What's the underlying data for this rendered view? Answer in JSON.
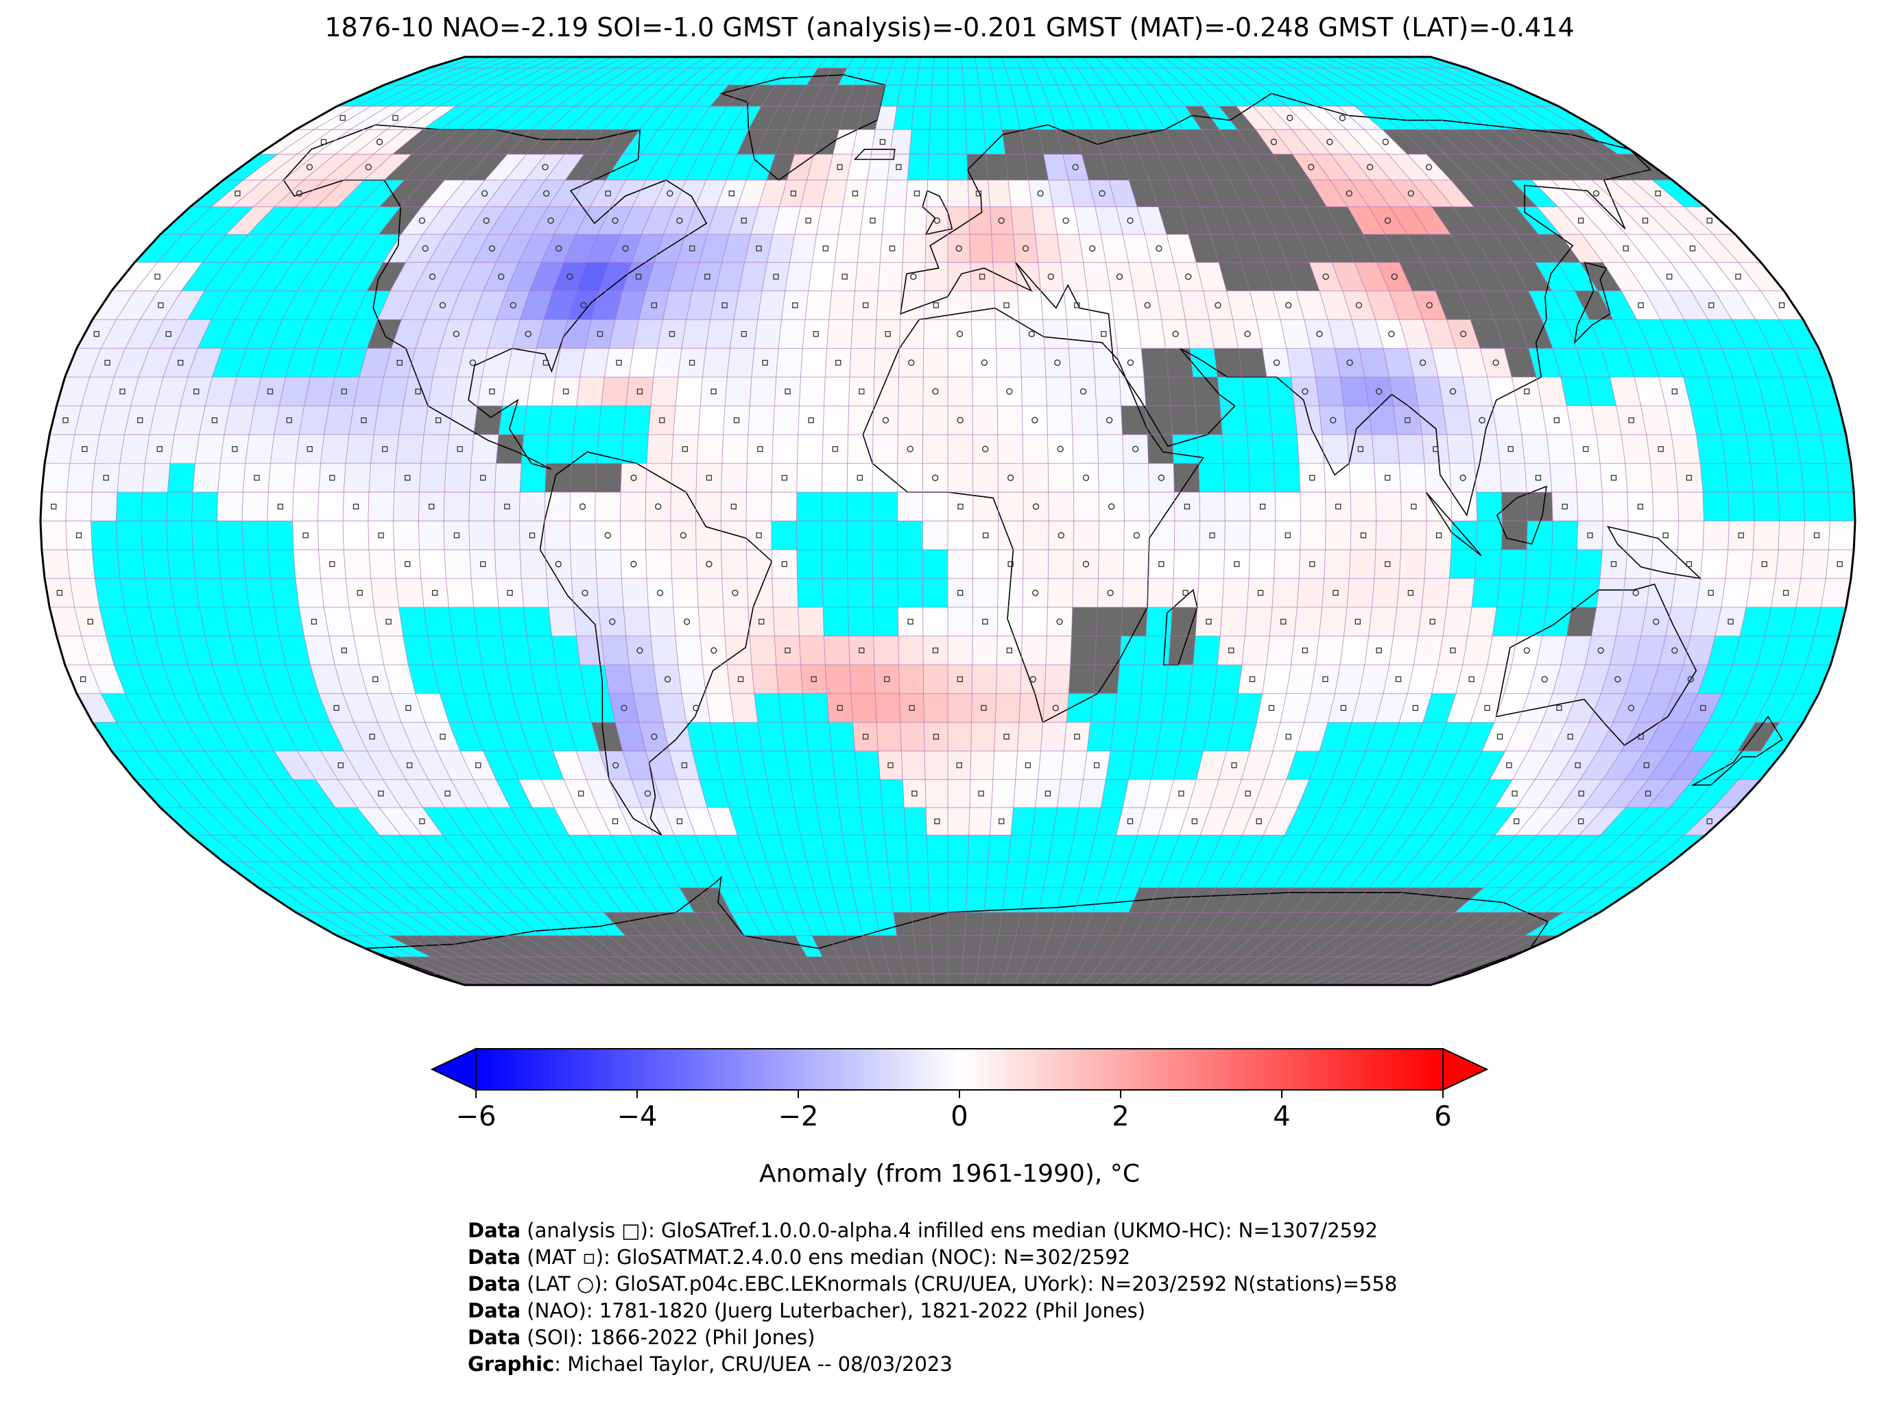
{
  "title": "1876-10 NAO=-2.19 SOI=-1.0 GMST (analysis)=-0.201 GMST (MAT)=-0.248 GMST (LAT)=-0.414",
  "colors": {
    "ocean_missing": "#00ffff",
    "land_missing": "#6b6b6b",
    "grid": "#b26bb5",
    "coast": "#000000",
    "neg_extreme": "#0000ff",
    "zero": "#ffffff",
    "pos_extreme": "#ff0000"
  },
  "colorbar": {
    "label": "Anomaly (from 1961-1990), °C",
    "min": -6,
    "max": 6,
    "ticks": [
      {
        "value": -6,
        "label": "−6"
      },
      {
        "value": -4,
        "label": "−4"
      },
      {
        "value": -2,
        "label": "−2"
      },
      {
        "value": 0,
        "label": "0"
      },
      {
        "value": 2,
        "label": "2"
      },
      {
        "value": 4,
        "label": "4"
      },
      {
        "value": 6,
        "label": "6"
      }
    ],
    "extend": "both"
  },
  "map": {
    "projection": "Robinson",
    "grid_resolution_deg": 5,
    "anomaly_regions": [
      {
        "region": "Eastern North America",
        "anomaly": -2.5
      },
      {
        "region": "North Atlantic",
        "anomaly": -1.2
      },
      {
        "region": "Europe",
        "anomaly": 1.6
      },
      {
        "region": "Eastern Asia",
        "anomaly": 2.4
      },
      {
        "region": "South Asia",
        "anomaly": -1.8
      },
      {
        "region": "South Atlantic",
        "anomaly": 1.3
      },
      {
        "region": "South Pacific",
        "anomaly": -1.2
      },
      {
        "region": "Southern South America",
        "anomaly": -1.8
      },
      {
        "region": "Australia",
        "anomaly": -0.6
      },
      {
        "region": "Tropical Pacific",
        "anomaly": -0.3
      }
    ]
  },
  "credits": [
    {
      "bold": "Data",
      "text": " (analysis □): GloSATref.1.0.0.0-alpha.4 infilled ens median (UKMO-HC): N=1307/2592"
    },
    {
      "bold": "Data",
      "text": " (MAT ▫): GloSATMAT.2.4.0.0 ens median (NOC): N=302/2592"
    },
    {
      "bold": "Data",
      "text": " (LAT ○): GloSAT.p04c.EBC.LEKnormals (CRU/UEA, UYork): N=203/2592 N(stations)=558"
    },
    {
      "bold": "Data",
      "text": " (NAO): 1781-1820 (Juerg Luterbacher), 1821-2022 (Phil Jones)"
    },
    {
      "bold": "Data",
      "text": " (SOI): 1866-2022 (Phil Jones)"
    },
    {
      "bold": "Graphic",
      "text": ": Michael Taylor, CRU/UEA -- 08/03/2023"
    }
  ]
}
